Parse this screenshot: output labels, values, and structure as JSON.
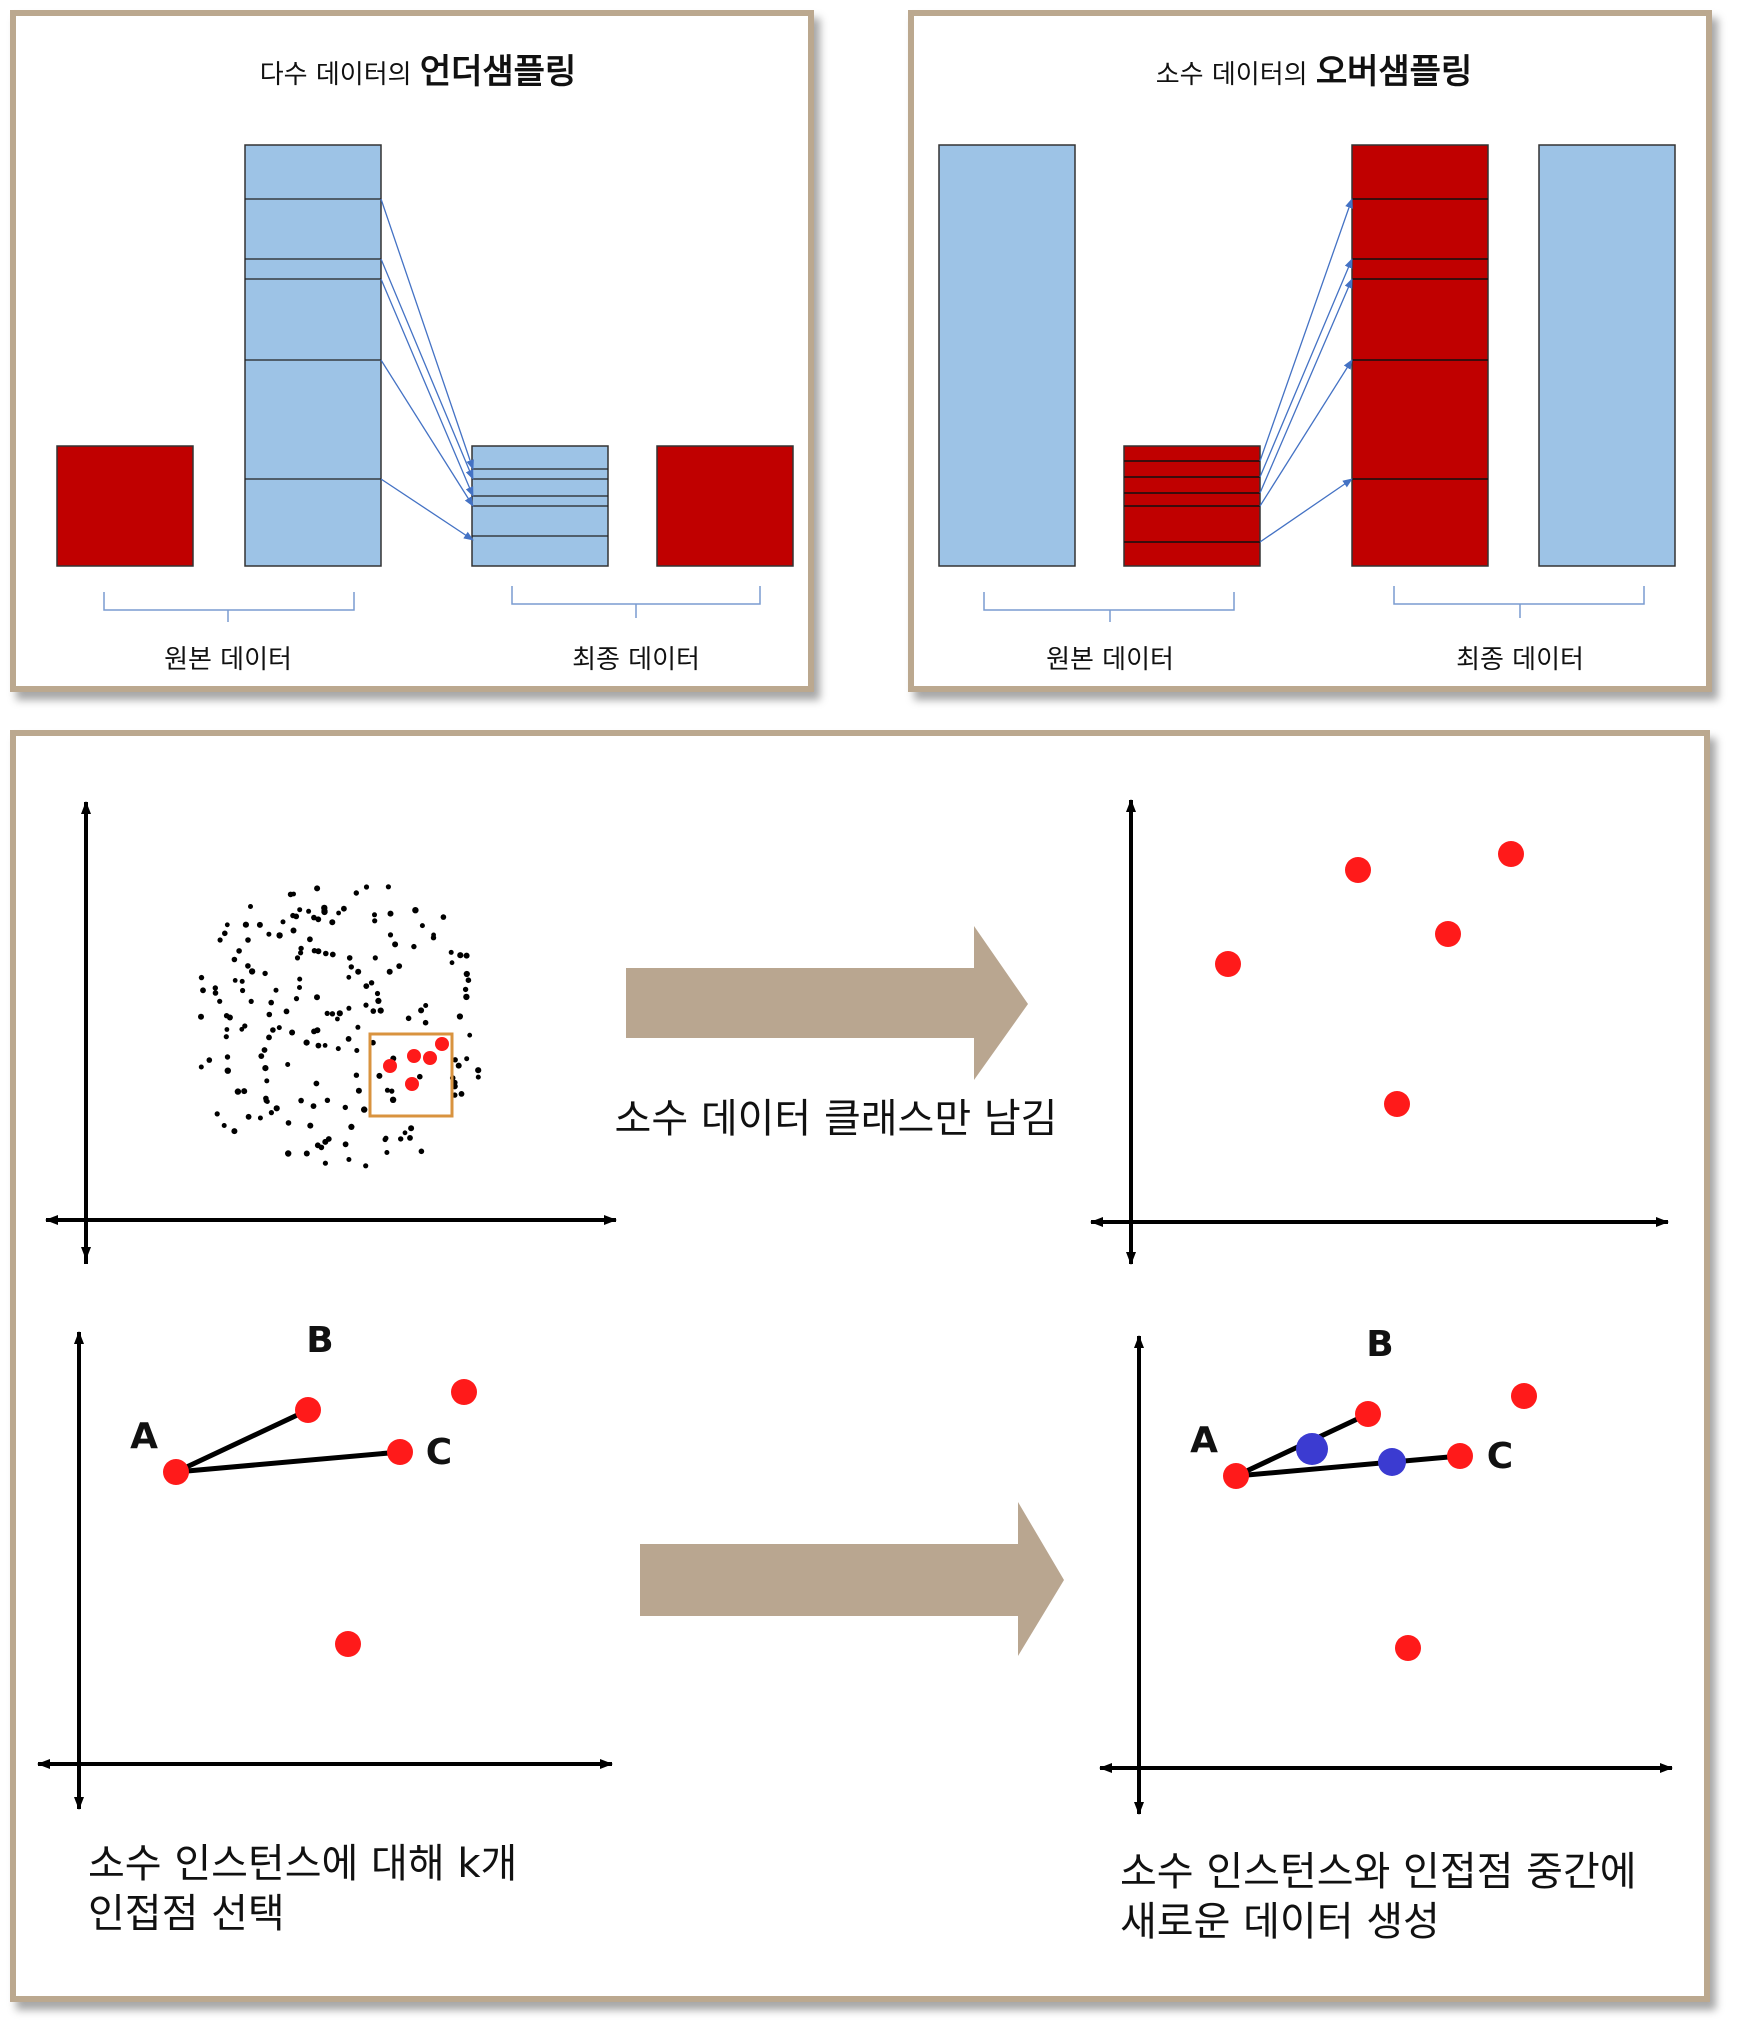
{
  "under": {
    "title_prefix": "다수 데이터의 ",
    "title_strong": "언더샘플링",
    "label_original": "원본 데이터",
    "label_final": "최종 데이터"
  },
  "over": {
    "title_prefix": "소수 데이터의 ",
    "title_strong": "오버샘플링",
    "label_original": "원본 데이터",
    "label_final": "최종 데이터"
  },
  "smote": {
    "step1_caption": "소수 데이터 클래스만 남김",
    "step2_caption_line1": "소수 인스턴스에 대해 k개",
    "step2_caption_line2": "인접점 선택",
    "step3_caption_line1": "소수 인스턴스와 인접점 중간에",
    "step3_caption_line2": "새로운 데이터 생성",
    "point_labels": {
      "a": "A",
      "b": "B",
      "c": "C"
    }
  },
  "colors": {
    "majority": "#9dc3e6",
    "minority": "#c00000",
    "arrow": "#b9a690",
    "frame": "#bba88f",
    "red_point": "#ff1a1a",
    "synthetic_point": "#3b3bd1",
    "highlight_box": "#d9933f"
  }
}
